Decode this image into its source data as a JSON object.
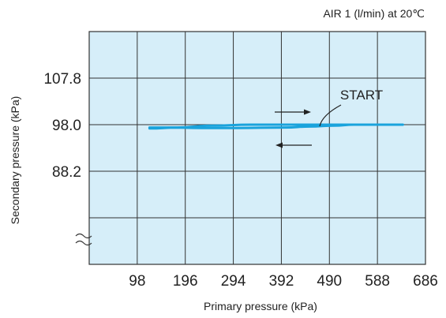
{
  "chart_data": {
    "type": "line",
    "header": "AIR 1 (l/min) at 20℃",
    "xlabel": "Primary pressure (kPa)",
    "ylabel": "Secondary pressure (kPa)",
    "x_ticks": [
      "98",
      "196",
      "294",
      "392",
      "490",
      "588",
      "686"
    ],
    "y_ticks": [
      "107.8",
      "98.0",
      "88.2"
    ],
    "xlim": [
      0,
      686
    ],
    "ylim": [
      68.6,
      117.6
    ],
    "axis_break": "y",
    "grid": true,
    "background_color": "#d6eef9",
    "series_color": "#1aa3dc",
    "annotation": "START",
    "series": [
      {
        "direction": "increasing",
        "x": [
          123,
          180,
          250,
          330,
          420,
          490,
          540,
          640
        ],
        "y": [
          97.2,
          97.4,
          97.8,
          98.0,
          98.0,
          98.0,
          98.0,
          98.0
        ]
      },
      {
        "direction": "decreasing",
        "x": [
          540,
          500,
          450,
          400,
          300,
          230,
          160,
          123
        ],
        "y": [
          98.0,
          97.8,
          97.6,
          97.4,
          97.3,
          97.3,
          97.4,
          97.4
        ]
      }
    ]
  }
}
